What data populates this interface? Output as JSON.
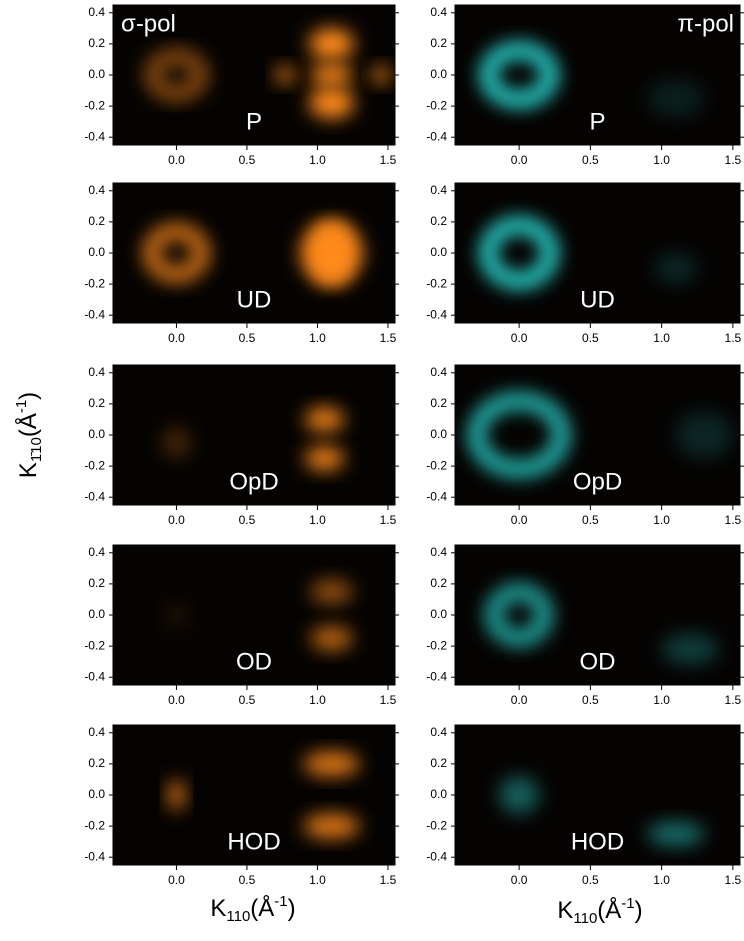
{
  "chart_data": {
    "type": "image-grid",
    "x_label": {
      "base": "K",
      "sub": "110",
      "unit": "(Å",
      "sup": "-1",
      "close": ")"
    },
    "y_label": {
      "base": "K",
      "sub": "1̄10",
      "unit": "(Å",
      "sup": "-1",
      "close": ")"
    },
    "xlim": [
      -0.45,
      1.55
    ],
    "ylim": [
      -0.45,
      0.45
    ],
    "xticks": [
      {
        "value": 0,
        "label": "0.0"
      },
      0.5,
      {
        "value": 1,
        "label": "1.0"
      },
      1.5
    ],
    "yticks": [
      0.4,
      0.2,
      {
        "value": 0,
        "label": "0.0"
      },
      -0.2,
      -0.4
    ],
    "columns": [
      {
        "title": "σ-pol",
        "color": "#ff8a1e"
      },
      {
        "title": "π-pol",
        "color": "#2ee6e0"
      }
    ],
    "rows": [
      "P",
      "UD",
      "OpD",
      "OD",
      "HOD"
    ]
  }
}
